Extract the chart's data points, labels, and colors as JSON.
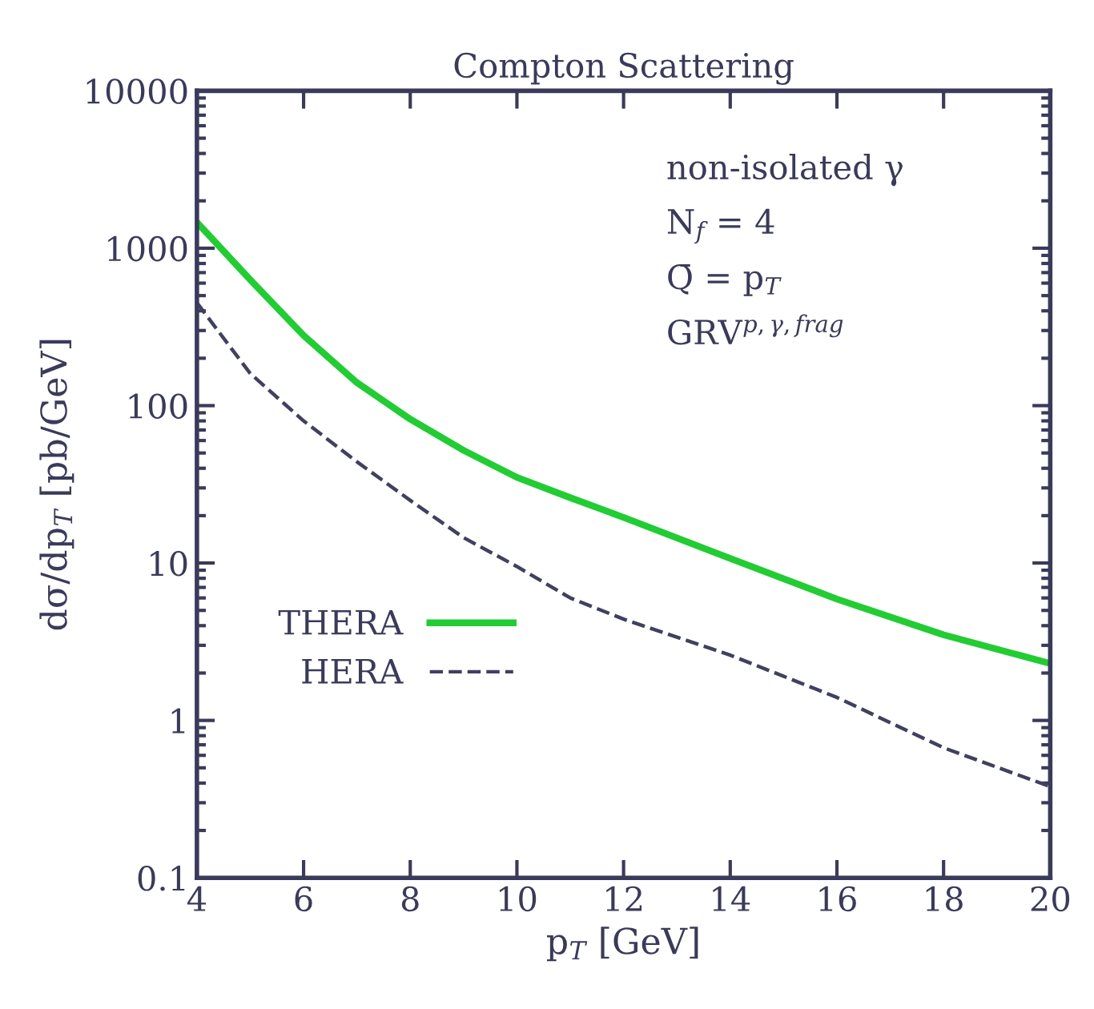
{
  "chart_data": {
    "type": "line",
    "title": "Compton Scattering",
    "xlabel": "p$_{T}$ [GeV]",
    "ylabel": "dσ/dp$_{T}$ [pb/GeV]",
    "log": "y",
    "xlim": [
      4,
      20
    ],
    "ylim": [
      0.1,
      10000
    ],
    "xticks": [
      4,
      6,
      8,
      10,
      12,
      14,
      16,
      18,
      20
    ],
    "yticks": [
      0.1,
      1,
      10,
      100,
      1000,
      10000
    ],
    "grid": false,
    "legend": "bottom left",
    "marker": "none",
    "annotations": [
      "non-isolated γ",
      "N$_{f}$ = 4",
      "Q̄ = p$_{T}$",
      "GRV$^{p,γ,frag}$"
    ],
    "series": [
      {
        "name": "THERA",
        "color": "#22cc33",
        "line_style": "solid",
        "x": [
          4,
          5,
          6,
          7,
          8,
          9,
          10,
          11,
          12,
          14,
          16,
          18,
          20
        ],
        "values": [
          1460,
          630,
          279,
          140,
          82,
          52,
          35,
          26,
          19.5,
          10.7,
          5.9,
          3.5,
          2.3
        ]
      },
      {
        "name": "HERA",
        "color": "#404060",
        "line_style": "dashed",
        "x": [
          4,
          5,
          6,
          7,
          8,
          9,
          10,
          11,
          12,
          14,
          16,
          18,
          20
        ],
        "values": [
          450,
          160,
          80,
          44,
          25,
          14.5,
          9.5,
          6,
          4.4,
          2.6,
          1.4,
          0.67,
          0.38
        ]
      }
    ]
  }
}
